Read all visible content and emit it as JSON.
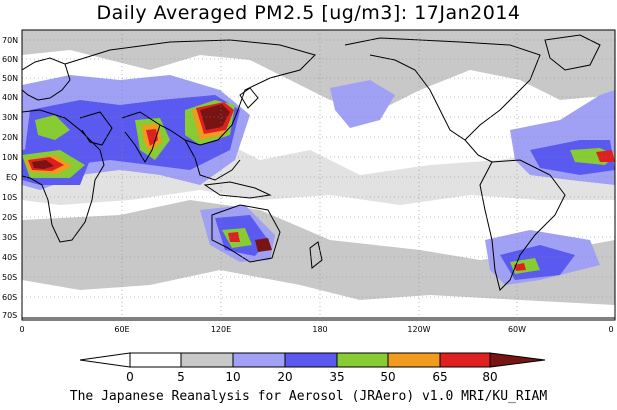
{
  "title": "Daily Averaged PM2.5 [ug/m3]: 17Jan2014",
  "footer": "The Japanese Reanalysis for Aerosol (JRAero) v1.0 MRI/KU_RIAM",
  "map": {
    "lat_labels": [
      "70N",
      "60N",
      "50N",
      "40N",
      "30N",
      "20N",
      "10N",
      "EQ",
      "10S",
      "20S",
      "30S",
      "40S",
      "50S",
      "60S",
      "70S"
    ],
    "lon_labels": [
      "0",
      "60E",
      "120E",
      "180",
      "120W",
      "60W",
      "0"
    ]
  },
  "colorbar": {
    "unit": "ug/m3",
    "ticks": [
      "0",
      "5",
      "10",
      "20",
      "35",
      "50",
      "65",
      "80"
    ],
    "colors": [
      "#ffffff",
      "#c8c8c8",
      "#a0a0f5",
      "#5a5af0",
      "#88cc33",
      "#f09a1e",
      "#e02020",
      "#781414"
    ]
  },
  "colors": {
    "ocean": "#ffffff",
    "coast": "#000000",
    "grid": "#888888"
  }
}
